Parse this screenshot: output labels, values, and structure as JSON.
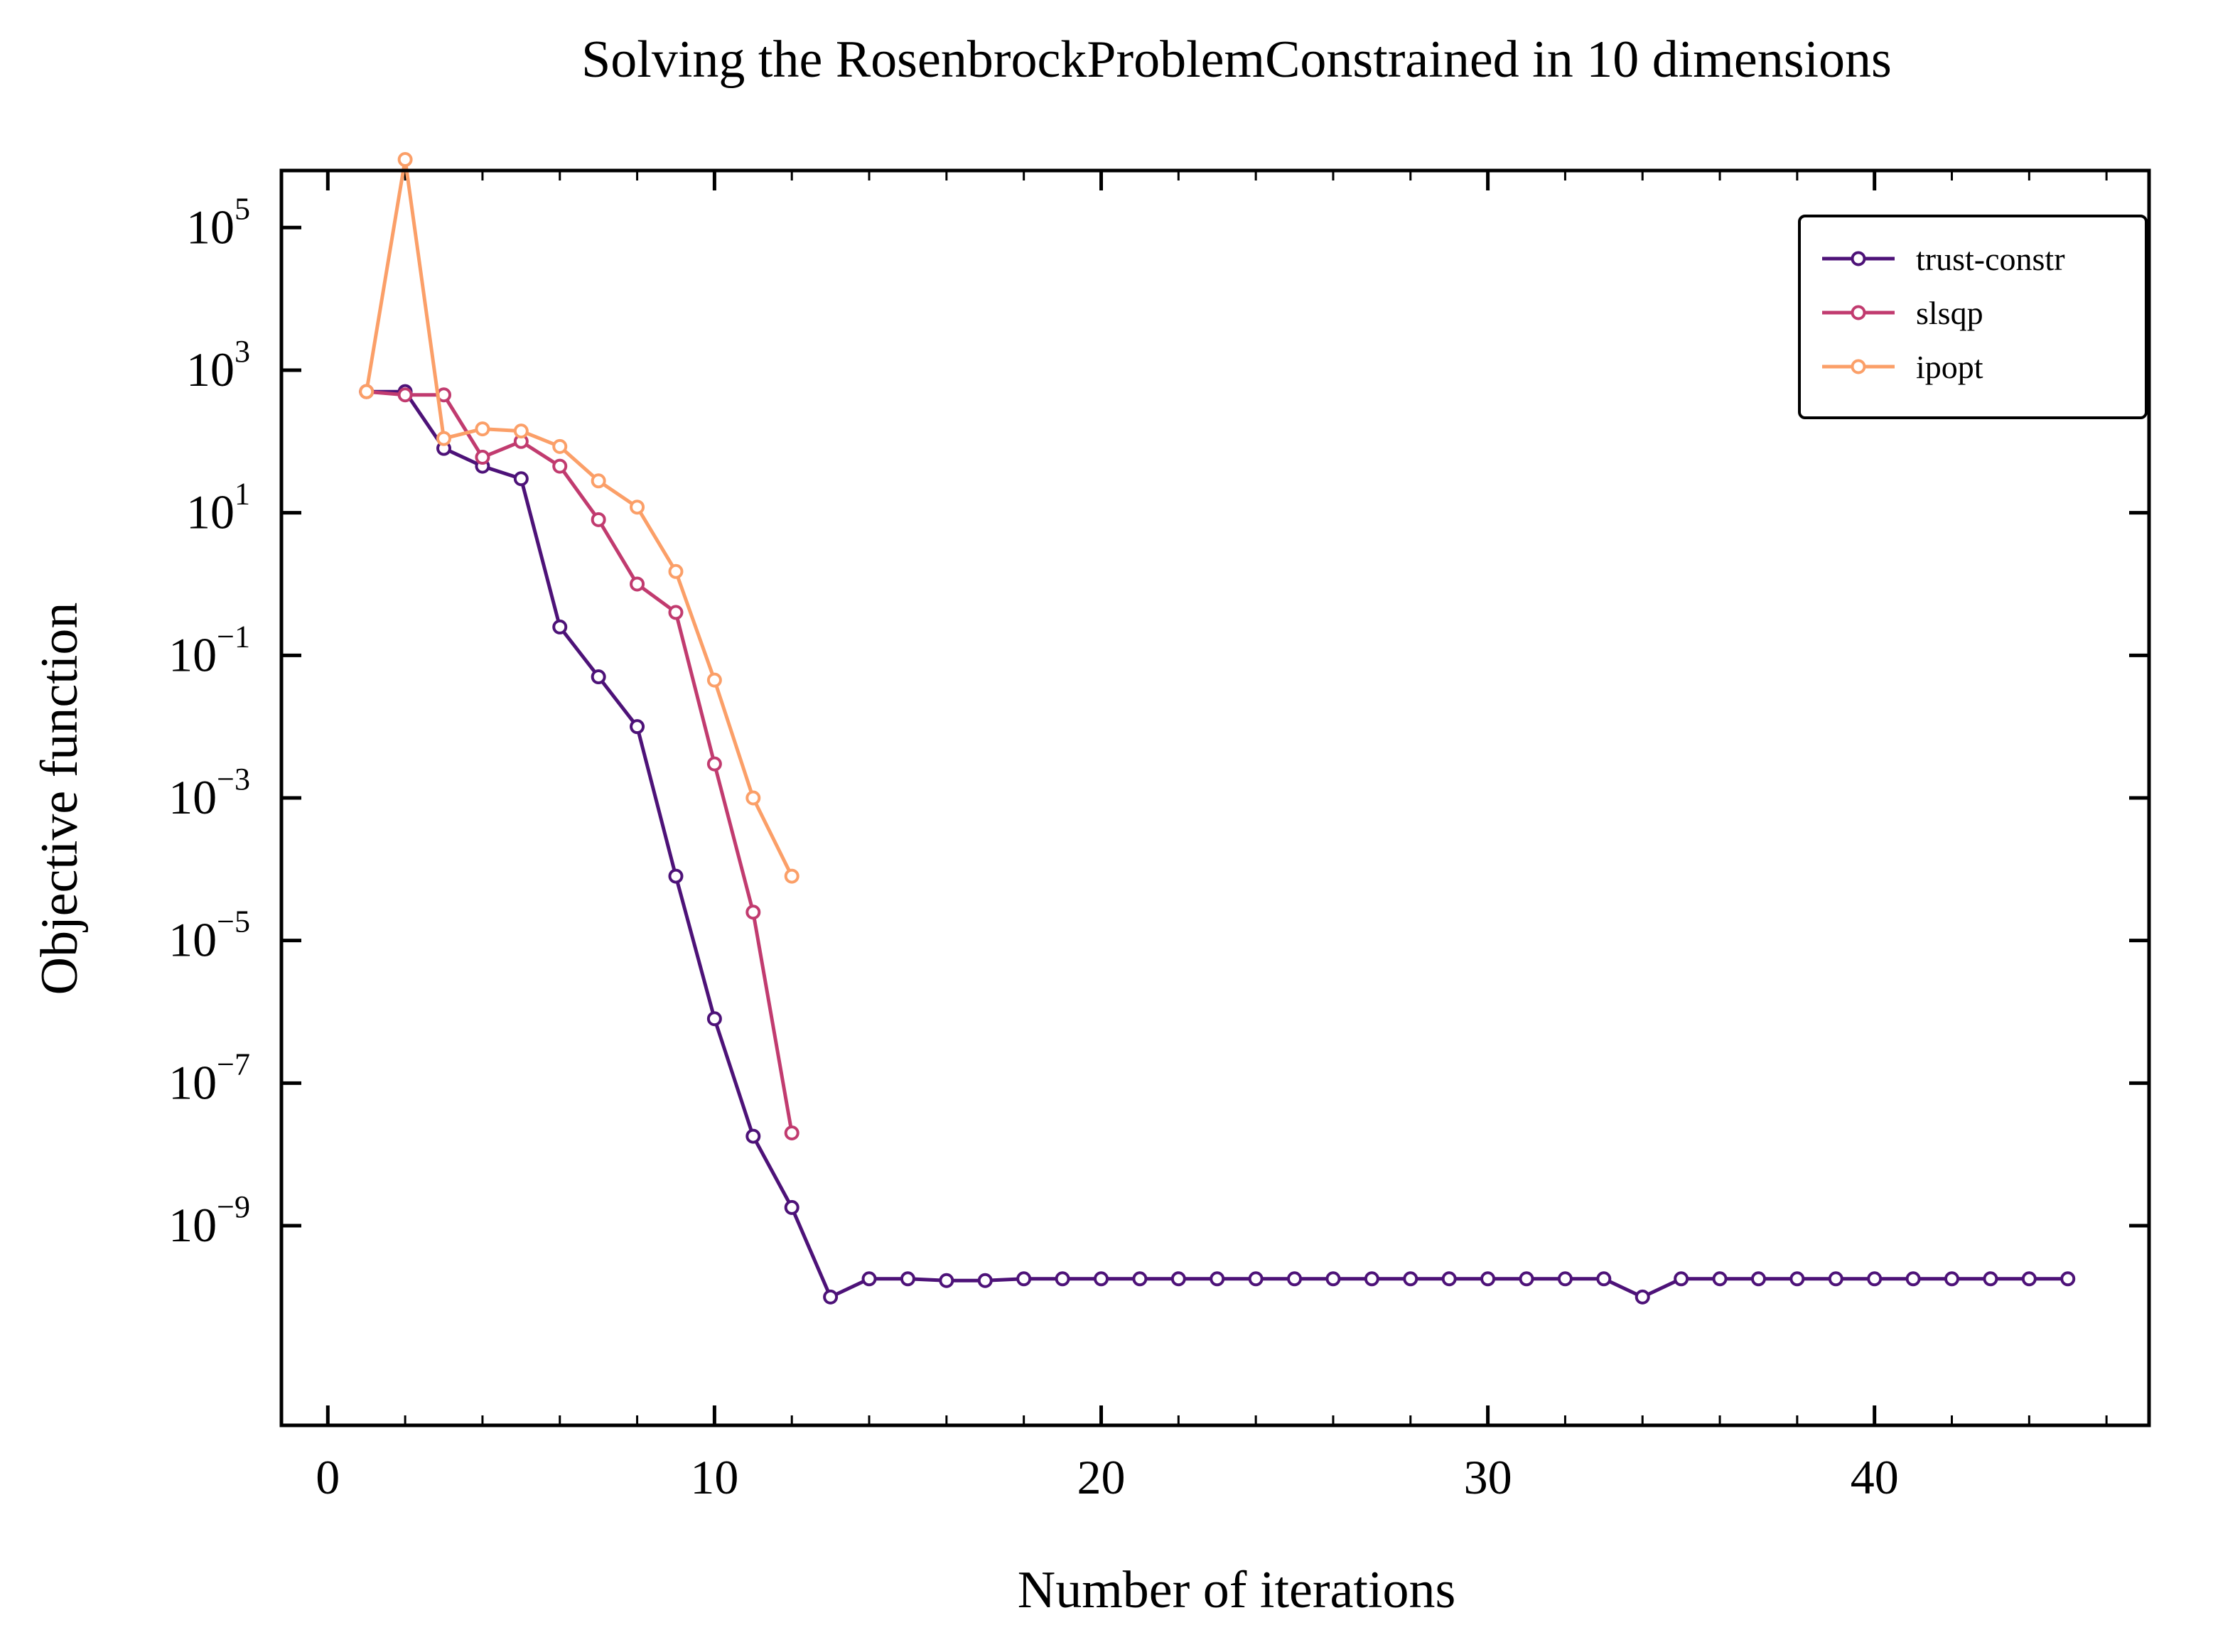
{
  "chart_data": {
    "type": "line",
    "title": "Solving the RosenbrockProblemConstrained in 10 dimensions",
    "xlabel": "Number of iterations",
    "ylabel": "Objective function",
    "xlim": [
      -1.2,
      47.1
    ],
    "ylim_log10": [
      -11.8,
      5.8
    ],
    "yscale": "log",
    "grid": false,
    "legend_position": "top-right",
    "x_ticks": [
      0,
      10,
      20,
      30,
      40
    ],
    "x_tick_labels": [
      "0",
      "10",
      "20",
      "30",
      "40"
    ],
    "y_ticks_log10": [
      5,
      3,
      1,
      -1,
      -3,
      -5,
      -7,
      -9
    ],
    "y_tick_labels": [
      {
        "base": "10",
        "exp": "5"
      },
      {
        "base": "10",
        "exp": "3"
      },
      {
        "base": "10",
        "exp": "1"
      },
      {
        "base": "10",
        "exp": "−1"
      },
      {
        "base": "10",
        "exp": "−3"
      },
      {
        "base": "10",
        "exp": "−5"
      },
      {
        "base": "10",
        "exp": "−7"
      },
      {
        "base": "10",
        "exp": "−9"
      }
    ],
    "series": [
      {
        "name": "trust-constr",
        "color": "#4d1278",
        "x": [
          1,
          2,
          3,
          4,
          5,
          6,
          7,
          8,
          9,
          10,
          11,
          12,
          13,
          14,
          15,
          16,
          17,
          18,
          19,
          20,
          21,
          22,
          23,
          24,
          25,
          26,
          27,
          28,
          29,
          30,
          31,
          32,
          33,
          34,
          35,
          36,
          37,
          38,
          39,
          40,
          41,
          42,
          43,
          44,
          45
        ],
        "y": [
          500,
          500,
          80,
          45,
          30,
          0.25,
          0.05,
          0.01,
          8e-05,
          8e-07,
          1.8e-08,
          1.8e-09,
          1e-10,
          1.8e-10,
          1.8e-10,
          1.7e-10,
          1.7e-10,
          1.8e-10,
          1.8e-10,
          1.8e-10,
          1.8e-10,
          1.8e-10,
          1.8e-10,
          1.8e-10,
          1.8e-10,
          1.8e-10,
          1.8e-10,
          1.8e-10,
          1.8e-10,
          1.8e-10,
          1.8e-10,
          1.8e-10,
          1.8e-10,
          1e-10,
          1.8e-10,
          1.8e-10,
          1.8e-10,
          1.8e-10,
          1.8e-10,
          1.8e-10,
          1.8e-10,
          1.8e-10,
          1.8e-10,
          1.8e-10,
          1.8e-10
        ]
      },
      {
        "name": "slsqp",
        "color": "#c13b6f",
        "x": [
          1,
          2,
          3,
          4,
          5,
          6,
          7,
          8,
          9,
          10,
          11,
          12
        ],
        "y": [
          500,
          450,
          450,
          60,
          100,
          45,
          8,
          1,
          0.4,
          0.003,
          2.5e-05,
          2e-08
        ]
      },
      {
        "name": "ipopt",
        "color": "#fb9f68",
        "x": [
          1,
          2,
          3,
          4,
          5,
          6,
          7,
          8,
          9,
          10,
          11,
          12
        ],
        "y": [
          500,
          900000,
          110,
          150,
          140,
          85,
          28,
          12,
          1.5,
          0.045,
          0.001,
          8e-05
        ]
      }
    ]
  }
}
